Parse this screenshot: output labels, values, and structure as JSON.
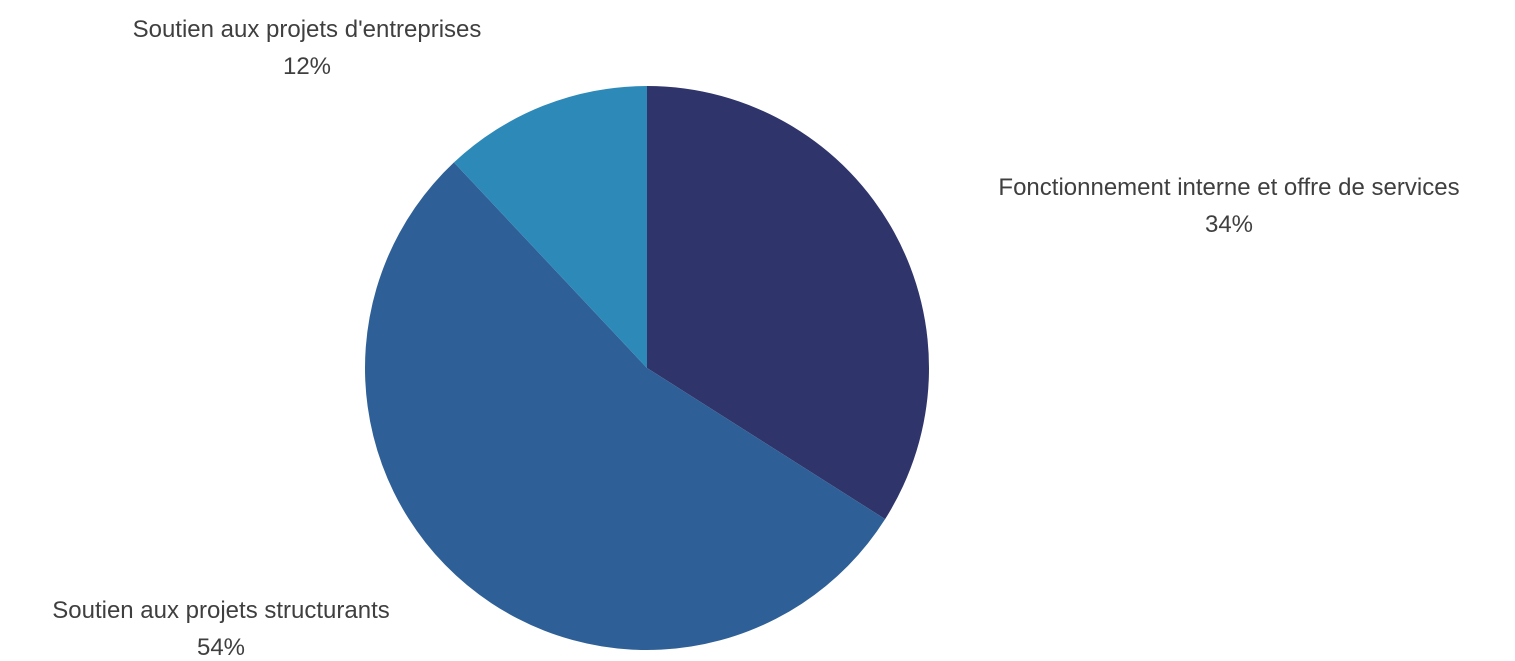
{
  "chart_data": {
    "type": "pie",
    "title": "",
    "slices": [
      {
        "name": "Fonctionnement interne et offre de services",
        "value": 34,
        "label": "34%",
        "color": "#2f346b"
      },
      {
        "name": "Soutien aux projets structurants",
        "value": 54,
        "label": "54%",
        "color": "#2e6097"
      },
      {
        "name": "Soutien aux projets d'entreprises",
        "value": 12,
        "label": "12%",
        "color": "#2c89b8"
      }
    ],
    "start": "12 o'clock",
    "direction": "clockwise",
    "legend": "none (data labels beside slices)"
  }
}
